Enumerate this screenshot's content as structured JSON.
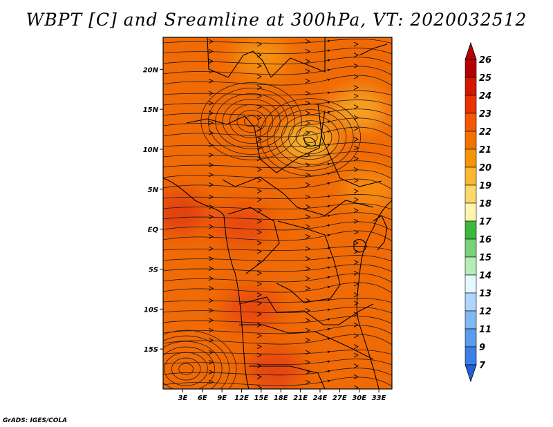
{
  "title": "WBPT [C] and Sreamline at 300hPa, VT: 2020032512",
  "credit": "GrADS: IGES/COLA",
  "map": {
    "lon_min": 0,
    "lon_max": 35,
    "lat_min": -20,
    "lat_max": 24,
    "background_fill": "#f06a06",
    "x_ticks": [
      "3E",
      "6E",
      "9E",
      "12E",
      "15E",
      "18E",
      "21E",
      "24E",
      "27E",
      "30E",
      "33E"
    ],
    "x_tick_values": [
      3,
      6,
      9,
      12,
      15,
      18,
      21,
      24,
      27,
      30,
      33
    ],
    "y_ticks": [
      "20N",
      "15N",
      "10N",
      "5N",
      "EQ",
      "5S",
      "10S",
      "15S"
    ],
    "y_tick_values": [
      20,
      15,
      10,
      5,
      0,
      -5,
      -10,
      -15
    ]
  },
  "colorbar": {
    "labels": [
      "26",
      "25",
      "24",
      "23",
      "22",
      "21",
      "20",
      "19",
      "18",
      "17",
      "16",
      "15",
      "14",
      "13",
      "12",
      "11",
      "9",
      "7"
    ],
    "colors": [
      "#b40000",
      "#d41800",
      "#e83200",
      "#f55800",
      "#f07300",
      "#f59508",
      "#f8b830",
      "#fbd86a",
      "#fff4b0",
      "#3cb83c",
      "#78d278",
      "#b6ecb6",
      "#e4f8ff",
      "#aed4ff",
      "#80b8f2",
      "#5a9cec",
      "#3a80e6",
      "#2060d8"
    ]
  },
  "fields": [
    {
      "label": "warm-pool-west",
      "lon": 2.5,
      "lat": 2.0,
      "color": "#e2400a"
    },
    {
      "label": "warm-pool-center",
      "lon": 12.0,
      "lat": 0.5,
      "color": "#e84a0a"
    },
    {
      "label": "warm-pool-south",
      "lon": 13.5,
      "lat": -10.0,
      "color": "#e84a0a"
    },
    {
      "label": "warm-pool-south2",
      "lon": 17.0,
      "lat": -17.5,
      "color": "#e44408"
    },
    {
      "label": "cool-north",
      "lon": 15.0,
      "lat": 21.5,
      "color": "#f59210"
    },
    {
      "label": "cool-ne",
      "lon": 30.0,
      "lat": 15.0,
      "color": "#f7a020"
    },
    {
      "label": "cool-sahel",
      "lon": 22.0,
      "lat": 11.0,
      "color": "#f8b02a"
    },
    {
      "label": "cool-east",
      "lon": 31.5,
      "lat": 5.0,
      "color": "#f58a10"
    }
  ]
}
